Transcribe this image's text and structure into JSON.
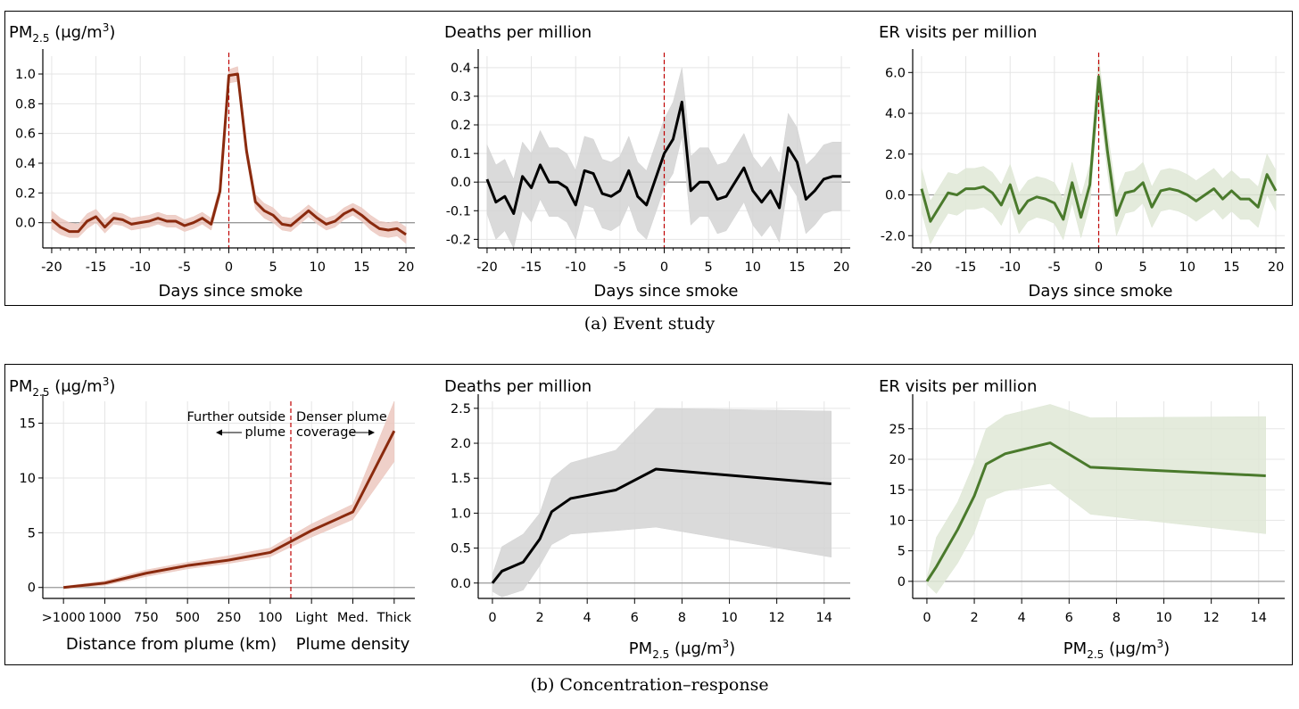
{
  "captions": {
    "a": "(a) Event study",
    "b": "(b) Concentration–response"
  },
  "colors": {
    "pm_line": "#8a2a0e",
    "pm_band": "#ecc8bf",
    "death_line": "#000000",
    "death_band": "#d3d3d3",
    "er_line": "#4a7a2c",
    "er_band": "#dfe8d6",
    "event_line": "#c00000",
    "zero_line": "#9a9a9a",
    "grid": "#e5e5e5"
  },
  "chart_data": [
    {
      "id": "es_pm",
      "type": "line",
      "title_main": "PM",
      "title_sub": "2.5",
      "title_rest": " (μg/m",
      "title_sup": "3",
      "title_end": ")",
      "xlabel": "Days since smoke",
      "xlim": [
        -21,
        21
      ],
      "ylim": [
        -0.17,
        1.12
      ],
      "xticks": [
        -20,
        -15,
        -10,
        -5,
        0,
        5,
        10,
        15,
        20
      ],
      "yticks": [
        0.0,
        0.2,
        0.4,
        0.6,
        0.8,
        1.0
      ],
      "ytick_labels": [
        "0.0",
        "0.2",
        "0.4",
        "0.6",
        "0.8",
        "1.0"
      ],
      "grid": true,
      "event_line_x": 0,
      "x": [
        -20,
        -19,
        -18,
        -17,
        -16,
        -15,
        -14,
        -13,
        -12,
        -11,
        -10,
        -9,
        -8,
        -7,
        -6,
        -5,
        -4,
        -3,
        -2,
        -1,
        0,
        1,
        2,
        3,
        4,
        5,
        6,
        7,
        8,
        9,
        10,
        11,
        12,
        13,
        14,
        15,
        16,
        17,
        18,
        19,
        20
      ],
      "y": [
        0.02,
        -0.03,
        -0.06,
        -0.06,
        0.01,
        0.04,
        -0.03,
        0.03,
        0.02,
        -0.01,
        0.0,
        0.01,
        0.03,
        0.01,
        0.01,
        -0.02,
        0.0,
        0.03,
        -0.01,
        0.21,
        0.99,
        1.0,
        0.48,
        0.14,
        0.08,
        0.05,
        -0.01,
        -0.02,
        0.03,
        0.08,
        0.03,
        -0.01,
        0.01,
        0.06,
        0.09,
        0.05,
        0.0,
        -0.04,
        -0.05,
        -0.04,
        -0.08
      ],
      "lower": [
        -0.04,
        -0.08,
        -0.1,
        -0.1,
        -0.04,
        0.0,
        -0.07,
        -0.01,
        -0.02,
        -0.05,
        -0.04,
        -0.03,
        -0.01,
        -0.03,
        -0.03,
        -0.06,
        -0.04,
        -0.01,
        -0.05,
        0.17,
        0.94,
        0.95,
        0.43,
        0.09,
        0.03,
        0.0,
        -0.05,
        -0.06,
        -0.01,
        0.04,
        -0.01,
        -0.05,
        -0.03,
        0.02,
        0.05,
        0.01,
        -0.05,
        -0.09,
        -0.1,
        -0.09,
        -0.14
      ],
      "upper": [
        0.08,
        0.03,
        0.0,
        -0.01,
        0.06,
        0.09,
        0.02,
        0.07,
        0.06,
        0.03,
        0.04,
        0.05,
        0.07,
        0.05,
        0.05,
        0.02,
        0.04,
        0.07,
        0.03,
        0.25,
        1.03,
        1.05,
        0.53,
        0.19,
        0.13,
        0.1,
        0.04,
        0.03,
        0.07,
        0.12,
        0.07,
        0.03,
        0.05,
        0.1,
        0.13,
        0.1,
        0.05,
        0.01,
        0.0,
        0.01,
        -0.03
      ]
    },
    {
      "id": "es_death",
      "type": "line",
      "title": "Deaths per million",
      "xlabel": "Days since smoke",
      "xlim": [
        -21,
        21
      ],
      "ylim": [
        -0.23,
        0.44
      ],
      "xticks": [
        -20,
        -15,
        -10,
        -5,
        0,
        5,
        10,
        15,
        20
      ],
      "yticks": [
        -0.2,
        -0.1,
        0.0,
        0.1,
        0.2,
        0.3,
        0.4
      ],
      "ytick_labels": [
        "-0.2",
        "-0.1",
        "0.0",
        "0.1",
        "0.2",
        "0.3",
        "0.4"
      ],
      "grid": true,
      "event_line_x": 0,
      "x": [
        -20,
        -19,
        -18,
        -17,
        -16,
        -15,
        -14,
        -13,
        -12,
        -11,
        -10,
        -9,
        -8,
        -7,
        -6,
        -5,
        -4,
        -3,
        -2,
        -1,
        0,
        1,
        2,
        3,
        4,
        5,
        6,
        7,
        8,
        9,
        10,
        11,
        12,
        13,
        14,
        15,
        16,
        17,
        18,
        19,
        20
      ],
      "y": [
        0.01,
        -0.07,
        -0.05,
        -0.11,
        0.02,
        -0.02,
        0.06,
        0.0,
        0.0,
        -0.02,
        -0.08,
        0.04,
        0.03,
        -0.04,
        -0.05,
        -0.03,
        0.04,
        -0.05,
        -0.08,
        0.01,
        0.1,
        0.15,
        0.28,
        -0.03,
        0.0,
        0.0,
        -0.06,
        -0.05,
        0.0,
        0.05,
        -0.03,
        -0.07,
        -0.03,
        -0.09,
        0.12,
        0.07,
        -0.06,
        -0.03,
        0.01,
        0.02,
        0.02
      ],
      "lower": [
        -0.11,
        -0.2,
        -0.17,
        -0.23,
        -0.1,
        -0.14,
        -0.06,
        -0.12,
        -0.12,
        -0.14,
        -0.2,
        -0.08,
        -0.09,
        -0.16,
        -0.17,
        -0.15,
        -0.08,
        -0.17,
        -0.2,
        -0.11,
        -0.02,
        0.03,
        0.16,
        -0.15,
        -0.12,
        -0.12,
        -0.18,
        -0.17,
        -0.12,
        -0.07,
        -0.15,
        -0.19,
        -0.15,
        -0.21,
        0.0,
        -0.05,
        -0.18,
        -0.15,
        -0.11,
        -0.1,
        -0.1
      ],
      "upper": [
        0.13,
        0.06,
        0.08,
        0.01,
        0.14,
        0.1,
        0.18,
        0.12,
        0.12,
        0.1,
        0.04,
        0.16,
        0.15,
        0.08,
        0.07,
        0.09,
        0.16,
        0.07,
        0.04,
        0.13,
        0.22,
        0.28,
        0.4,
        0.09,
        0.12,
        0.12,
        0.06,
        0.07,
        0.12,
        0.17,
        0.09,
        0.05,
        0.09,
        0.03,
        0.24,
        0.19,
        0.06,
        0.09,
        0.13,
        0.14,
        0.14
      ]
    },
    {
      "id": "es_er",
      "type": "line",
      "title": "ER visits per million",
      "xlabel": "Days since smoke",
      "xlim": [
        -21,
        21
      ],
      "ylim": [
        -2.6,
        6.8
      ],
      "xticks": [
        -20,
        -15,
        -10,
        -5,
        0,
        5,
        10,
        15,
        20
      ],
      "yticks": [
        -2.0,
        0.0,
        2.0,
        4.0,
        6.0
      ],
      "ytick_labels": [
        "-2.0",
        "0.0",
        "2.0",
        "4.0",
        "6.0"
      ],
      "grid": true,
      "event_line_x": 0,
      "x": [
        -20,
        -19,
        -18,
        -17,
        -16,
        -15,
        -14,
        -13,
        -12,
        -11,
        -10,
        -9,
        -8,
        -7,
        -6,
        -5,
        -4,
        -3,
        -2,
        -1,
        0,
        1,
        2,
        3,
        4,
        5,
        6,
        7,
        8,
        9,
        10,
        11,
        12,
        13,
        14,
        15,
        16,
        17,
        18,
        19,
        20
      ],
      "y": [
        0.3,
        -1.3,
        -0.6,
        0.1,
        0.0,
        0.3,
        0.3,
        0.4,
        0.1,
        -0.5,
        0.5,
        -0.9,
        -0.3,
        -0.1,
        -0.2,
        -0.4,
        -1.2,
        0.6,
        -1.1,
        0.5,
        5.8,
        2.1,
        -1.0,
        0.1,
        0.2,
        0.6,
        -0.6,
        0.2,
        0.3,
        0.2,
        0.0,
        -0.3,
        0.0,
        0.3,
        -0.2,
        0.2,
        -0.2,
        -0.2,
        -0.6,
        1.0,
        0.2
      ],
      "lower": [
        -0.8,
        -2.4,
        -1.6,
        -0.9,
        -1.0,
        -0.7,
        -0.7,
        -0.6,
        -0.9,
        -1.5,
        -0.5,
        -1.9,
        -1.3,
        -1.1,
        -1.2,
        -1.4,
        -2.2,
        -0.4,
        -2.1,
        -0.5,
        4.8,
        1.1,
        -2.0,
        -0.9,
        -0.8,
        -0.4,
        -1.6,
        -0.8,
        -0.7,
        -0.8,
        -1.0,
        -1.3,
        -1.0,
        -0.7,
        -1.2,
        -0.8,
        -1.2,
        -1.2,
        -1.6,
        0.0,
        -0.8
      ],
      "upper": [
        1.3,
        -0.3,
        0.4,
        1.1,
        1.0,
        1.3,
        1.3,
        1.4,
        1.1,
        0.5,
        1.5,
        0.1,
        0.7,
        0.9,
        0.8,
        0.6,
        -0.2,
        1.6,
        -0.1,
        1.5,
        6.8,
        3.1,
        0.0,
        1.1,
        1.2,
        1.6,
        0.4,
        1.2,
        1.3,
        1.2,
        1.0,
        0.7,
        1.0,
        1.3,
        0.8,
        1.2,
        0.8,
        0.8,
        0.4,
        2.0,
        1.2
      ]
    },
    {
      "id": "cr_pm",
      "type": "line",
      "title_main": "PM",
      "title_sub": "2.5",
      "title_rest": " (μg/m",
      "title_sup": "3",
      "title_end": ")",
      "xlabel_left": "Distance from plume (km)",
      "xlabel_right": "Plume density",
      "xlim": [
        -0.5,
        8.5
      ],
      "ylim": [
        -1,
        17
      ],
      "xticks": [
        0,
        1,
        2,
        3,
        4,
        5,
        6,
        7,
        8
      ],
      "xtick_labels": [
        ">1000",
        "1000",
        "750",
        "500",
        "250",
        "100",
        "Light",
        "Med.",
        "Thick"
      ],
      "yticks": [
        0,
        5,
        10,
        15
      ],
      "ytick_labels": [
        "0",
        "5",
        "10",
        "15"
      ],
      "grid": true,
      "event_line_x": 5.5,
      "annotation_left": [
        "Further outside",
        "plume"
      ],
      "annotation_right": [
        "Denser plume",
        "coverage"
      ],
      "x": [
        0,
        1,
        2,
        3,
        4,
        5,
        5.5,
        6,
        7,
        8
      ],
      "y": [
        0.0,
        0.4,
        1.3,
        2.0,
        2.5,
        3.2,
        4.2,
        5.2,
        6.9,
        14.3
      ],
      "lower": [
        -0.1,
        0.2,
        1.0,
        1.7,
        2.2,
        2.8,
        3.7,
        4.6,
        6.2,
        11.5
      ],
      "upper": [
        0.1,
        0.6,
        1.6,
        2.3,
        2.9,
        3.6,
        4.7,
        5.8,
        7.6,
        17.0
      ]
    },
    {
      "id": "cr_death",
      "type": "line",
      "title": "Deaths per million",
      "xlabel_main": "PM",
      "xlabel_sub": "2.5",
      "xlabel_rest": " (μg/m",
      "xlabel_sup": "3",
      "xlabel_end": ")",
      "xlim": [
        -0.6,
        15.1
      ],
      "ylim": [
        -0.22,
        2.6
      ],
      "xticks": [
        0,
        2,
        4,
        6,
        8,
        10,
        12,
        14
      ],
      "yticks": [
        0.0,
        0.5,
        1.0,
        1.5,
        2.0,
        2.5
      ],
      "ytick_labels": [
        "0.0",
        "0.5",
        "1.0",
        "1.5",
        "2.0",
        "2.5"
      ],
      "grid": true,
      "x": [
        0,
        0.4,
        1.3,
        2.0,
        2.5,
        3.3,
        5.2,
        6.9,
        14.3
      ],
      "y": [
        0.0,
        0.17,
        0.3,
        0.63,
        1.02,
        1.21,
        1.33,
        1.63,
        1.42
      ],
      "lower": [
        -0.12,
        -0.2,
        -0.1,
        0.25,
        0.55,
        0.7,
        0.75,
        0.8,
        0.37
      ],
      "upper": [
        0.12,
        0.52,
        0.7,
        1.0,
        1.5,
        1.72,
        1.9,
        2.5,
        2.46
      ]
    },
    {
      "id": "cr_er",
      "type": "line",
      "title": "ER visits per million",
      "xlabel_main": "PM",
      "xlabel_sub": "2.5",
      "xlabel_rest": " (μg/m",
      "xlabel_sup": "3",
      "xlabel_end": ")",
      "xlim": [
        -0.6,
        15.1
      ],
      "ylim": [
        -2.8,
        29.5
      ],
      "xticks": [
        0,
        2,
        4,
        6,
        8,
        10,
        12,
        14
      ],
      "yticks": [
        0,
        5,
        10,
        15,
        20,
        25
      ],
      "ytick_labels": [
        "0",
        "5",
        "10",
        "15",
        "20",
        "25"
      ],
      "grid": true,
      "x": [
        0,
        0.4,
        1.3,
        2.0,
        2.5,
        3.3,
        5.2,
        6.9,
        14.3
      ],
      "y": [
        0.0,
        2.4,
        8.5,
        14.0,
        19.2,
        20.9,
        22.7,
        18.7,
        17.3
      ],
      "lower": [
        -0.5,
        -2.0,
        3.0,
        8.0,
        13.5,
        14.8,
        16.0,
        11.0,
        7.8
      ],
      "upper": [
        0.5,
        7.2,
        13.0,
        19.5,
        25.0,
        27.2,
        29.0,
        26.8,
        27.0
      ]
    }
  ]
}
